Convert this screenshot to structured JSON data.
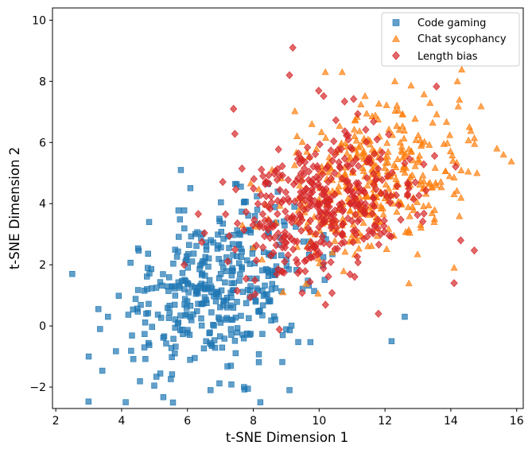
{
  "chart_data": {
    "type": "scatter",
    "title": "",
    "xlabel": "t-SNE Dimension 1",
    "ylabel": "t-SNE Dimension 2",
    "xlim": [
      1.9,
      16.2
    ],
    "ylim": [
      -2.7,
      10.4
    ],
    "xticks": [
      2,
      4,
      6,
      8,
      10,
      12,
      14,
      16
    ],
    "yticks": [
      -2,
      0,
      2,
      4,
      6,
      8,
      10
    ],
    "xtick_labels": [
      "2",
      "4",
      "6",
      "8",
      "10",
      "12",
      "14",
      "16"
    ],
    "ytick_labels": [
      "−2",
      "0",
      "2",
      "4",
      "6",
      "8",
      "10"
    ],
    "legend_position": "top-right",
    "series": [
      {
        "name": "Code gaming",
        "marker": "square",
        "color": "#1f77b4",
        "count": 400,
        "center": [
          6.9,
          1.2
        ],
        "spread": [
          1.5,
          1.35
        ],
        "correlation": 0.3,
        "extremes": [
          [
            2.5,
            1.7
          ],
          [
            12.2,
            -0.5
          ],
          [
            5.8,
            5.1
          ],
          [
            6.7,
            -2.1
          ],
          [
            9.1,
            -2.1
          ],
          [
            12.6,
            0.3
          ],
          [
            3.0,
            -1.0
          ]
        ]
      },
      {
        "name": "Chat sycophancy",
        "marker": "triangle",
        "color": "#ff7f0e",
        "count": 400,
        "center": [
          11.6,
          4.8
        ],
        "spread": [
          1.35,
          1.25
        ],
        "correlation": 0.25,
        "extremes": [
          [
            15.4,
            5.8
          ],
          [
            15.6,
            5.6
          ],
          [
            10.7,
            8.3
          ],
          [
            12.3,
            8.0
          ],
          [
            14.2,
            8.0
          ],
          [
            8.9,
            1.1
          ],
          [
            14.1,
            1.9
          ]
        ]
      },
      {
        "name": "Length bias",
        "marker": "diamond",
        "color": "#d62728",
        "count": 400,
        "center": [
          10.2,
          3.9
        ],
        "spread": [
          1.4,
          1.3
        ],
        "correlation": 0.35,
        "extremes": [
          [
            9.2,
            9.1
          ],
          [
            9.1,
            8.2
          ],
          [
            5.9,
            2.0
          ],
          [
            11.8,
            0.4
          ],
          [
            14.3,
            2.8
          ],
          [
            14.1,
            1.4
          ],
          [
            7.4,
            7.1
          ]
        ]
      }
    ]
  }
}
